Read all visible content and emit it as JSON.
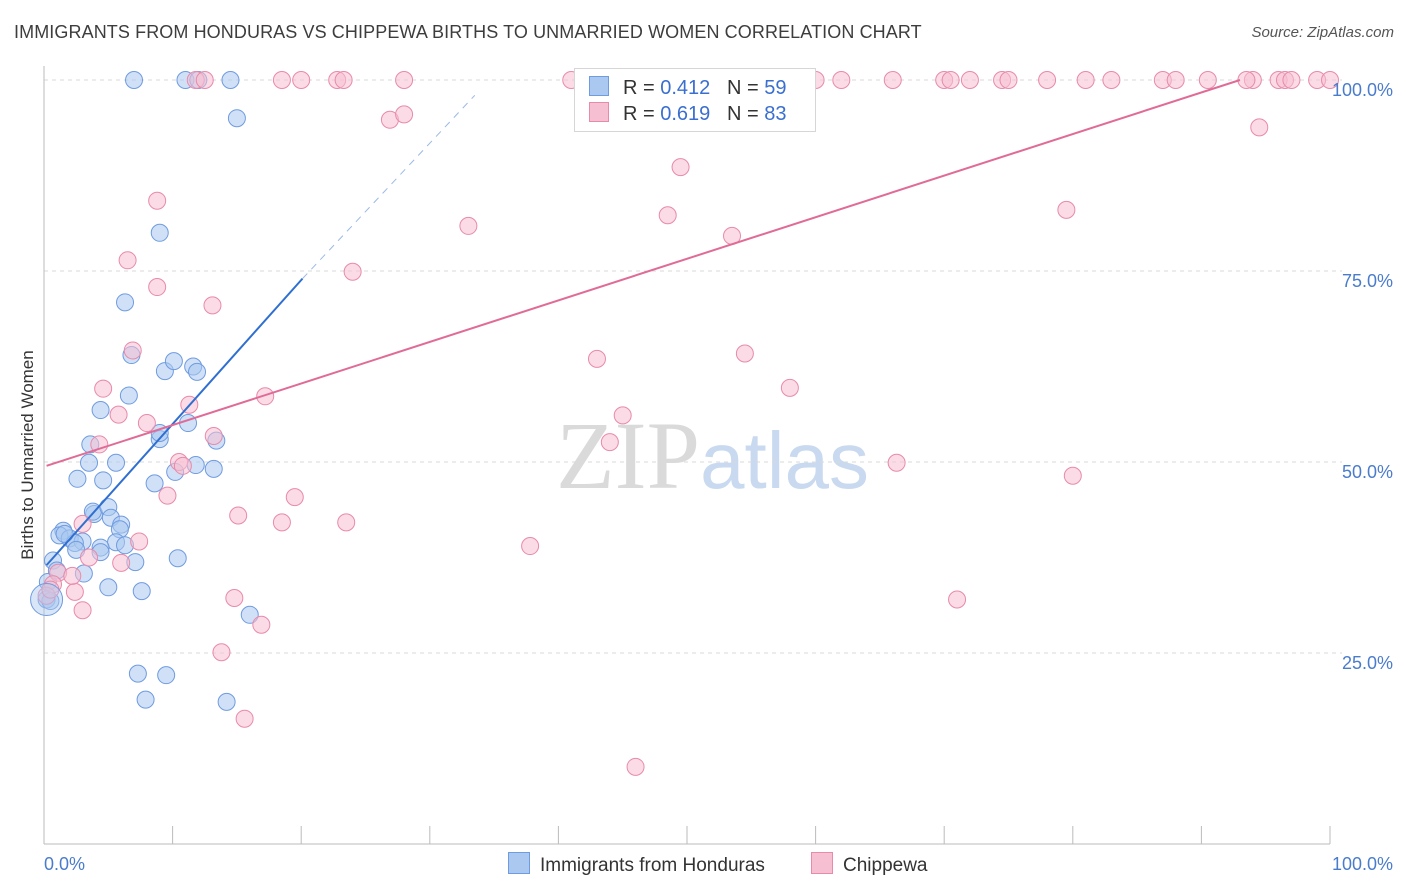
{
  "title": "IMMIGRANTS FROM HONDURAS VS CHIPPEWA BIRTHS TO UNMARRIED WOMEN CORRELATION CHART",
  "source": "Source: ZipAtlas.com",
  "watermark": {
    "zip": "ZIP",
    "atlas": "atlas"
  },
  "legend": {
    "r_label": "R =",
    "n_label": "N =",
    "rows": [
      {
        "r": "0.412",
        "n": "59",
        "color": "#aac8f0",
        "stroke": "#6f9be0"
      },
      {
        "r": "0.619",
        "n": "83",
        "color": "#f7c0d2",
        "stroke": "#e88aaa"
      }
    ]
  },
  "bottom_legend": [
    {
      "label": "Immigrants from Honduras",
      "color": "#aac8f0",
      "stroke": "#6f9be0"
    },
    {
      "label": "Chippewa",
      "color": "#f7c0d2",
      "stroke": "#e88aaa"
    }
  ],
  "chart_data": {
    "type": "scatter",
    "title": "IMMIGRANTS FROM HONDURAS VS CHIPPEWA BIRTHS TO UNMARRIED WOMEN CORRELATION CHART",
    "xlabel": "",
    "ylabel": "Births to Unmarried Women",
    "xlim": [
      0,
      100
    ],
    "ylim": [
      0,
      102
    ],
    "x_tick_labels": [
      "0.0%",
      "100.0%"
    ],
    "y_tick_labels": [
      {
        "v": 25,
        "label": "25.0%"
      },
      {
        "v": 50,
        "label": "50.0%"
      },
      {
        "v": 75,
        "label": "75.0%"
      },
      {
        "v": 100,
        "label": "100.0%"
      }
    ],
    "grid": true,
    "series": [
      {
        "name": "Immigrants from Honduras",
        "color": "#aac8f0",
        "stroke": "#6f9be0",
        "trend": {
          "color": "#2f6fd0",
          "x0": 0.2,
          "y0": 36.5,
          "x1": 20.1,
          "y1": 74.0,
          "dash_to_x": 33.5,
          "dash_to_y": 98.0
        },
        "points": [
          [
            7.0,
            100
          ],
          [
            11.0,
            100
          ],
          [
            12.0,
            100
          ],
          [
            14.5,
            100
          ],
          [
            15.0,
            95.0
          ],
          [
            9.0,
            80.0
          ],
          [
            6.3,
            70.9
          ],
          [
            6.8,
            64.0
          ],
          [
            9.4,
            61.9
          ],
          [
            10.1,
            63.2
          ],
          [
            11.6,
            62.5
          ],
          [
            11.9,
            61.8
          ],
          [
            4.4,
            56.8
          ],
          [
            6.6,
            58.7
          ],
          [
            9.0,
            53.0
          ],
          [
            9.0,
            53.8
          ],
          [
            11.2,
            55.1
          ],
          [
            3.6,
            52.3
          ],
          [
            13.4,
            52.8
          ],
          [
            3.5,
            49.9
          ],
          [
            5.6,
            49.9
          ],
          [
            11.8,
            49.6
          ],
          [
            13.2,
            49.1
          ],
          [
            2.6,
            47.8
          ],
          [
            4.6,
            47.6
          ],
          [
            8.6,
            47.2
          ],
          [
            10.2,
            48.7
          ],
          [
            3.9,
            43.2
          ],
          [
            3.8,
            43.5
          ],
          [
            5.0,
            44.1
          ],
          [
            5.2,
            42.7
          ],
          [
            6.0,
            41.8
          ],
          [
            5.9,
            41.2
          ],
          [
            1.5,
            41.0
          ],
          [
            1.2,
            40.4
          ],
          [
            2.0,
            40.0
          ],
          [
            3.0,
            39.6
          ],
          [
            2.4,
            39.4
          ],
          [
            5.6,
            39.5
          ],
          [
            4.4,
            38.8
          ],
          [
            2.5,
            38.5
          ],
          [
            6.3,
            39.1
          ],
          [
            0.7,
            37.1
          ],
          [
            4.4,
            38.2
          ],
          [
            7.1,
            36.9
          ],
          [
            10.4,
            37.4
          ],
          [
            0.3,
            34.3
          ],
          [
            1.0,
            35.8
          ],
          [
            3.1,
            35.4
          ],
          [
            5.0,
            33.6
          ],
          [
            7.6,
            33.1
          ],
          [
            0.2,
            32.0
          ],
          [
            0.5,
            31.8
          ],
          [
            16.0,
            30.0
          ],
          [
            7.3,
            22.3
          ],
          [
            9.5,
            22.1
          ],
          [
            7.9,
            18.9
          ],
          [
            14.2,
            18.6
          ],
          [
            1.6,
            40.6
          ]
        ]
      },
      {
        "name": "Chippewa",
        "color": "#f7c0d2",
        "stroke": "#e88aaa",
        "trend": {
          "color": "#e06b97",
          "x0": 0.2,
          "y0": 49.5,
          "x1": 93.0,
          "y1": 100.0
        },
        "points": [
          [
            11.8,
            100
          ],
          [
            12.5,
            100
          ],
          [
            18.5,
            100
          ],
          [
            20.0,
            100
          ],
          [
            22.8,
            100
          ],
          [
            23.3,
            100
          ],
          [
            28.0,
            100
          ],
          [
            41.0,
            100
          ],
          [
            49.0,
            100
          ],
          [
            60.0,
            100
          ],
          [
            62.0,
            100
          ],
          [
            66.0,
            100
          ],
          [
            70.0,
            100
          ],
          [
            70.5,
            100
          ],
          [
            72.0,
            100
          ],
          [
            74.5,
            100
          ],
          [
            75.0,
            100
          ],
          [
            78.0,
            100
          ],
          [
            83.0,
            100
          ],
          [
            87.0,
            100
          ],
          [
            88.0,
            100
          ],
          [
            90.5,
            100
          ],
          [
            94.0,
            100
          ],
          [
            96.0,
            100
          ],
          [
            96.5,
            100
          ],
          [
            99.0,
            100
          ],
          [
            100.0,
            100
          ],
          [
            97.0,
            100
          ],
          [
            93.5,
            100
          ],
          [
            81.0,
            100
          ],
          [
            26.9,
            94.8
          ],
          [
            28.0,
            95.5
          ],
          [
            94.5,
            93.8
          ],
          [
            49.5,
            88.6
          ],
          [
            8.8,
            84.2
          ],
          [
            48.5,
            82.3
          ],
          [
            33.0,
            80.9
          ],
          [
            79.5,
            83.0
          ],
          [
            53.5,
            79.6
          ],
          [
            6.5,
            76.4
          ],
          [
            24.0,
            74.9
          ],
          [
            8.8,
            72.9
          ],
          [
            13.1,
            70.5
          ],
          [
            6.9,
            64.6
          ],
          [
            43.0,
            63.5
          ],
          [
            54.5,
            64.2
          ],
          [
            58.0,
            59.7
          ],
          [
            4.6,
            59.6
          ],
          [
            17.2,
            58.6
          ],
          [
            11.3,
            57.5
          ],
          [
            5.8,
            56.2
          ],
          [
            8.0,
            55.1
          ],
          [
            45.0,
            56.1
          ],
          [
            4.3,
            52.3
          ],
          [
            13.2,
            53.4
          ],
          [
            44.0,
            52.6
          ],
          [
            10.5,
            50.0
          ],
          [
            10.8,
            49.5
          ],
          [
            66.3,
            49.9
          ],
          [
            80.0,
            48.2
          ],
          [
            9.6,
            45.6
          ],
          [
            19.5,
            45.4
          ],
          [
            15.1,
            43.0
          ],
          [
            18.5,
            42.1
          ],
          [
            23.5,
            42.1
          ],
          [
            3.0,
            41.9
          ],
          [
            7.4,
            39.6
          ],
          [
            37.8,
            39.0
          ],
          [
            3.5,
            37.5
          ],
          [
            6.0,
            36.8
          ],
          [
            1.1,
            35.5
          ],
          [
            0.7,
            34.0
          ],
          [
            2.4,
            33.0
          ],
          [
            14.8,
            32.2
          ],
          [
            71.0,
            32.0
          ],
          [
            3.0,
            30.6
          ],
          [
            16.9,
            28.7
          ],
          [
            13.8,
            25.1
          ],
          [
            15.6,
            16.4
          ],
          [
            46.0,
            10.1
          ],
          [
            0.2,
            32.5
          ],
          [
            0.5,
            33.3
          ],
          [
            2.2,
            35.1
          ]
        ]
      }
    ]
  }
}
